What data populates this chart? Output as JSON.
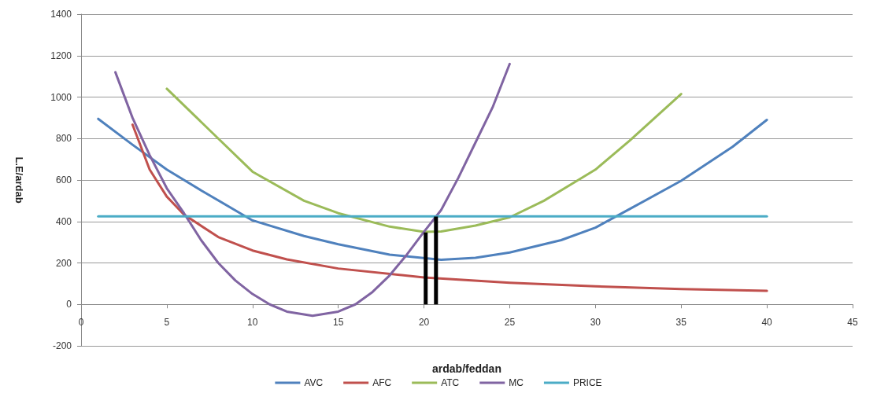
{
  "chart_data": {
    "type": "line",
    "xlabel": "ardab/feddan",
    "ylabel": "L.E/ardab",
    "xlim": [
      0,
      45
    ],
    "xticks": [
      0,
      5,
      10,
      15,
      20,
      25,
      30,
      35,
      40,
      45
    ],
    "ylim": [
      -200,
      1400
    ],
    "yticks": [
      -200,
      0,
      200,
      400,
      600,
      800,
      1000,
      1200,
      1400
    ],
    "grid": "y",
    "legend": "bottom",
    "marker": "none",
    "line_style": "solid",
    "series": [
      {
        "name": "AVC",
        "color": "#4f81bd",
        "x": [
          1,
          3,
          5,
          7,
          10,
          13,
          15,
          18,
          21,
          23,
          25,
          28,
          30,
          32,
          35,
          38,
          40
        ],
        "values": [
          895,
          770,
          650,
          550,
          405,
          330,
          290,
          240,
          215,
          225,
          250,
          310,
          370,
          460,
          596,
          760,
          890
        ]
      },
      {
        "name": "AFC",
        "color": "#c0504d",
        "x": [
          3,
          4,
          5,
          6,
          8,
          10,
          12,
          15,
          20,
          25,
          30,
          35,
          40
        ],
        "values": [
          867,
          650,
          520,
          433,
          325,
          260,
          217,
          173,
          130,
          104,
          87,
          74,
          65
        ]
      },
      {
        "name": "ATC",
        "color": "#9bbb59",
        "x": [
          5,
          8,
          10,
          13,
          15,
          18,
          20,
          21,
          23,
          25,
          27,
          29,
          30,
          32,
          35
        ],
        "values": [
          1040,
          800,
          640,
          500,
          440,
          375,
          350,
          352,
          380,
          420,
          500,
          600,
          650,
          790,
          1015
        ]
      },
      {
        "name": "MC",
        "color": "#8064a2",
        "x": [
          2,
          3,
          4,
          5,
          6,
          7,
          8,
          9,
          10,
          11,
          12,
          13.5,
          15,
          16,
          17,
          18,
          19,
          20,
          21,
          22,
          23,
          24,
          25
        ],
        "values": [
          1120,
          900,
          720,
          560,
          440,
          310,
          200,
          115,
          50,
          0,
          -35,
          -55,
          -35,
          0,
          60,
          140,
          240,
          350,
          455,
          610,
          780,
          950,
          1160
        ]
      },
      {
        "name": "PRICE",
        "color": "#4bacc6",
        "x": [
          1,
          40
        ],
        "values": [
          425,
          425
        ]
      },
      {
        "color": "#000000",
        "x": [
          20.1,
          20.1
        ],
        "values": [
          0,
          347
        ]
      },
      {
        "color": "#000000",
        "x": [
          20.7,
          20.7
        ],
        "values": [
          0,
          424
        ]
      }
    ]
  }
}
